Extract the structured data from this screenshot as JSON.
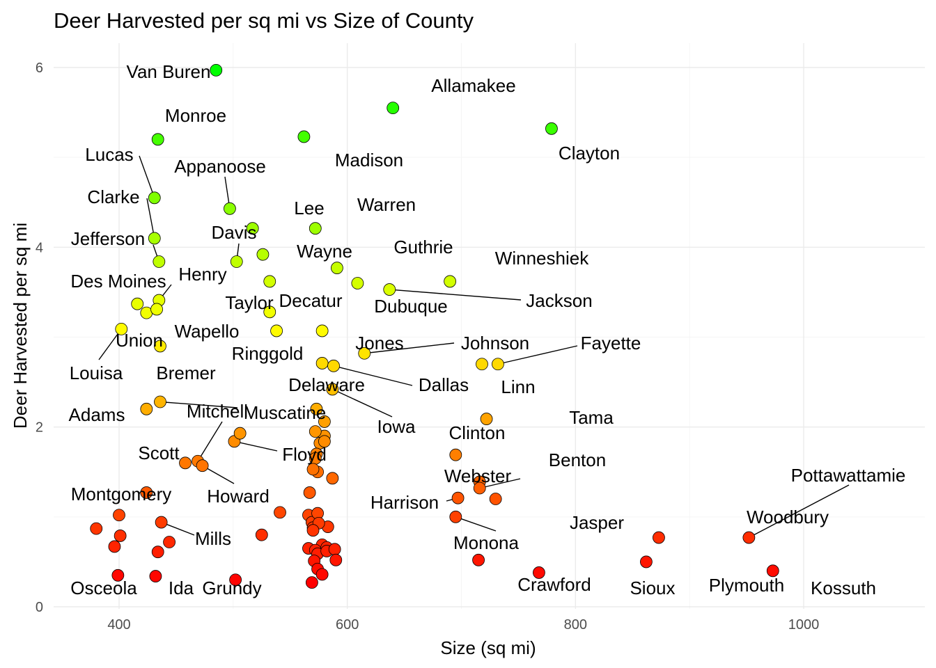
{
  "chart_data": {
    "type": "scatter",
    "title": "Deer Harvested per sq mi vs Size of County",
    "xlabel": "Size (sq mi)",
    "ylabel": "Deer Harvested per sq mi",
    "xlim": [
      350,
      1000
    ],
    "ylim": [
      0,
      6.2
    ],
    "xticks": [
      400,
      600,
      800,
      1000
    ],
    "yticks": [
      0,
      2,
      4,
      6
    ],
    "grid": true,
    "color_scale": {
      "low": "#ff0000",
      "high": "#00ff00"
    },
    "points": [
      {
        "label": "Van Buren",
        "x": 485,
        "y": 5.97
      },
      {
        "label": "Allamakee",
        "x": 640,
        "y": 5.55
      },
      {
        "label": "Clayton",
        "x": 779,
        "y": 5.32
      },
      {
        "label": "Madison",
        "x": 562,
        "y": 5.23
      },
      {
        "label": "Monroe",
        "x": 434,
        "y": 5.2
      },
      {
        "label": "Lucas",
        "x": 431,
        "y": 4.55
      },
      {
        "label": "Appanoose",
        "x": 497,
        "y": 4.43
      },
      {
        "label": "Lee",
        "x": 517,
        "y": 4.21
      },
      {
        "label": "Warren",
        "x": 572,
        "y": 4.21
      },
      {
        "label": "Clarke",
        "x": 431,
        "y": 4.1
      },
      {
        "label": "Wayne",
        "x": 526,
        "y": 3.92
      },
      {
        "label": "Davis",
        "x": 503,
        "y": 3.84
      },
      {
        "label": "Jefferson",
        "x": 435,
        "y": 3.84
      },
      {
        "label": "Guthrie",
        "x": 591,
        "y": 3.77
      },
      {
        "label": "Winneshiek",
        "x": 690,
        "y": 3.62
      },
      {
        "label": "Des Moines",
        "x": 416,
        "y": 3.37
      },
      {
        "label": "Henry",
        "x": 435,
        "y": 3.41
      },
      {
        "label": "Taylor",
        "x": 532,
        "y": 3.62
      },
      {
        "label": "Decatur",
        "x": 532,
        "y": 3.28
      },
      {
        "label": "Dubuque",
        "x": 609,
        "y": 3.6
      },
      {
        "label": "Jackson",
        "x": 637,
        "y": 3.53
      },
      {
        "label": "Ringgold",
        "x": 538,
        "y": 3.07
      },
      {
        "label": "Louisa",
        "x": 402,
        "y": 3.09
      },
      {
        "label": "Union",
        "x": 424,
        "y": 3.27
      },
      {
        "label": "Wapello",
        "x": 433,
        "y": 3.31
      },
      {
        "label": "Jones",
        "x": 578,
        "y": 2.71
      },
      {
        "label": "Johnson",
        "x": 615,
        "y": 2.82
      },
      {
        "label": "Fayette",
        "x": 732,
        "y": 2.7
      },
      {
        "label": "Linn",
        "x": 718,
        "y": 2.7
      },
      {
        "label": "Dallas",
        "x": 588,
        "y": 2.68
      },
      {
        "label": "Delaware",
        "x": 578,
        "y": 3.07
      },
      {
        "label": "Iowa",
        "x": 587,
        "y": 2.42
      },
      {
        "label": "Bremer",
        "x": 436,
        "y": 2.9
      },
      {
        "label": "Adams",
        "x": 424,
        "y": 2.2
      },
      {
        "label": "Muscatine",
        "x": 436,
        "y": 2.28
      },
      {
        "label": "Mitchell",
        "x": 469,
        "y": 1.62
      },
      {
        "label": "Tama",
        "x": 722,
        "y": 2.09
      },
      {
        "label": "Clinton",
        "x": 695,
        "y": 1.69
      },
      {
        "label": "Floyd",
        "x": 501,
        "y": 1.84
      },
      {
        "label": "Scott",
        "x": 458,
        "y": 1.6
      },
      {
        "label": "Howard",
        "x": 473,
        "y": 1.57
      },
      {
        "label": "Benton",
        "x": 716,
        "y": 1.39
      },
      {
        "label": "Webster",
        "x": 716,
        "y": 1.32
      },
      {
        "label": "Pottawattamie",
        "x": 952,
        "y": 0.77
      },
      {
        "label": "Montgomery",
        "x": 424,
        "y": 1.27
      },
      {
        "label": "Harrison",
        "x": 697,
        "y": 1.21
      },
      {
        "label": "Jasper",
        "x": 730,
        "y": 1.2
      },
      {
        "label": "Woodbury",
        "x": 873,
        "y": 0.77
      },
      {
        "label": "Monona",
        "x": 695,
        "y": 1.0
      },
      {
        "label": "Mills",
        "x": 437,
        "y": 0.94
      },
      {
        "label": "Crawford",
        "x": 715,
        "y": 0.52
      },
      {
        "label": "Sioux",
        "x": 768,
        "y": 0.38
      },
      {
        "label": "Plymouth",
        "x": 862,
        "y": 0.5
      },
      {
        "label": "Kossuth",
        "x": 973,
        "y": 0.4
      },
      {
        "label": "Osceola",
        "x": 399,
        "y": 0.35
      },
      {
        "label": "Ida",
        "x": 432,
        "y": 0.34
      },
      {
        "label": "Grundy",
        "x": 502,
        "y": 0.3
      },
      {
        "label": "",
        "x": 574,
        "y": 1.5
      },
      {
        "label": "",
        "x": 580,
        "y": 2.06
      },
      {
        "label": "",
        "x": 580,
        "y": 1.9
      },
      {
        "label": "",
        "x": 576,
        "y": 1.82
      },
      {
        "label": "",
        "x": 573,
        "y": 2.2
      },
      {
        "label": "",
        "x": 572,
        "y": 1.95
      },
      {
        "label": "",
        "x": 573,
        "y": 1.7
      },
      {
        "label": "",
        "x": 572,
        "y": 1.65
      },
      {
        "label": "",
        "x": 570,
        "y": 1.53
      },
      {
        "label": "",
        "x": 580,
        "y": 1.84
      },
      {
        "label": "",
        "x": 587,
        "y": 1.43
      },
      {
        "label": "",
        "x": 567,
        "y": 1.27
      },
      {
        "label": "",
        "x": 506,
        "y": 1.93
      },
      {
        "label": "",
        "x": 541,
        "y": 1.05
      },
      {
        "label": "",
        "x": 525,
        "y": 0.8
      },
      {
        "label": "",
        "x": 380,
        "y": 0.87
      },
      {
        "label": "",
        "x": 400,
        "y": 1.02
      },
      {
        "label": "",
        "x": 401,
        "y": 0.79
      },
      {
        "label": "",
        "x": 396,
        "y": 0.67
      },
      {
        "label": "",
        "x": 434,
        "y": 0.61
      },
      {
        "label": "",
        "x": 444,
        "y": 0.72
      },
      {
        "label": "",
        "x": 566,
        "y": 1.02
      },
      {
        "label": "",
        "x": 569,
        "y": 0.94
      },
      {
        "label": "",
        "x": 574,
        "y": 1.04
      },
      {
        "label": "",
        "x": 570,
        "y": 0.88
      },
      {
        "label": "",
        "x": 583,
        "y": 0.89
      },
      {
        "label": "",
        "x": 575,
        "y": 0.93
      },
      {
        "label": "",
        "x": 570,
        "y": 0.85
      },
      {
        "label": "",
        "x": 566,
        "y": 0.65
      },
      {
        "label": "",
        "x": 578,
        "y": 0.69
      },
      {
        "label": "",
        "x": 572,
        "y": 0.63
      },
      {
        "label": "",
        "x": 582,
        "y": 0.66
      },
      {
        "label": "",
        "x": 574,
        "y": 0.59
      },
      {
        "label": "",
        "x": 582,
        "y": 0.62
      },
      {
        "label": "",
        "x": 589,
        "y": 0.64
      },
      {
        "label": "",
        "x": 590,
        "y": 0.52
      },
      {
        "label": "",
        "x": 571,
        "y": 0.51
      },
      {
        "label": "",
        "x": 574,
        "y": 0.42
      },
      {
        "label": "",
        "x": 578,
        "y": 0.36
      },
      {
        "label": "",
        "x": 569,
        "y": 0.27
      }
    ]
  }
}
